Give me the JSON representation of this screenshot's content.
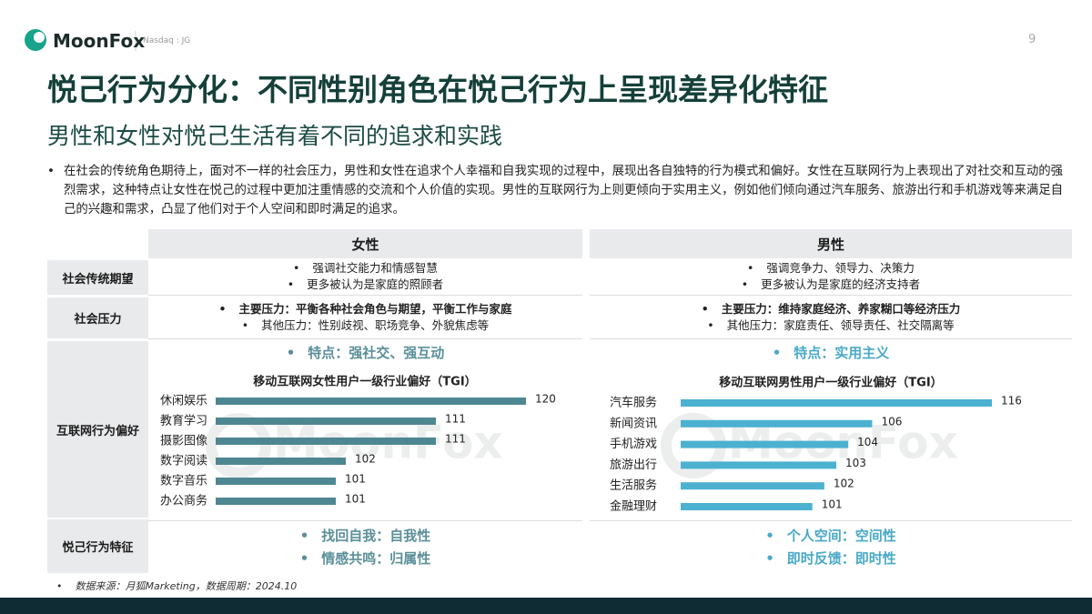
{
  "header": {
    "brand": "MoonFox",
    "exchange": "Nasdaq : JG",
    "page": "9"
  },
  "title": "悦己行为分化：不同性别角色在悦己行为上呈现差异化特征",
  "subtitle": "男性和女性对悦己生活有着不同的追求和实践",
  "intro": "在社会的传统角色期待上，面对不一样的社会压力，男性和女性在追求个人幸福和自我实现的过程中，展现出各自独特的行为模式和偏好。女性在互联网行为上表现出了对社交和互动的强烈需求，这种特点让女性在悦己的过程中更加注重情感的交流和个人价值的实现。男性的互联网行为上则更倾向于实用主义，例如他们倾向通过汽车服务、旅游出行和手机游戏等来满足自己的兴趣和需求，凸显了他们对于个人空间和即时满足的追求。",
  "table": {
    "columns": [
      "女性",
      "男性"
    ],
    "rows": [
      {
        "label": "社会传统期望",
        "female": [
          "强调社交能力和情感智慧",
          "更多被认为是家庭的照顾者"
        ],
        "male": [
          "强调竞争力、领导力、决策力",
          "更多被认为是家庭的经济支持者"
        ]
      },
      {
        "label": "社会压力",
        "female": [
          "主要压力：平衡各种社会角色与期望，平衡工作与家庭",
          "其他压力：性别歧视、职场竞争、外貌焦虑等"
        ],
        "male": [
          "主要压力：维持家庭经济、养家糊口等经济压力",
          "其他压力：家庭责任、领导责任、社交隔离等"
        ]
      },
      {
        "label": "互联网行为偏好",
        "female": [
          "特点：强社交、强互动"
        ],
        "male": [
          "特点：实用主义"
        ]
      },
      {
        "label": "悦己行为特征",
        "female": [
          "找回自我：自我性",
          "情感共鸣：归属性"
        ],
        "male": [
          "个人空间：空间性",
          "即时反馈：即时性"
        ]
      }
    ]
  },
  "chart_data": [
    {
      "type": "bar",
      "orientation": "horizontal",
      "title": "移动互联网女性用户一级行业偏好（TGI）",
      "categories": [
        "休闲娱乐",
        "教育学习",
        "摄影图像",
        "数字阅读",
        "数字音乐",
        "办公商务"
      ],
      "values": [
        120,
        111,
        111,
        102,
        101,
        101
      ],
      "color": "#4e8791",
      "xlim": [
        89,
        120
      ]
    },
    {
      "type": "bar",
      "orientation": "horizontal",
      "title": "移动互联网男性用户一级行业偏好（TGI）",
      "categories": [
        "汽车服务",
        "新闻资讯",
        "手机游戏",
        "旅游出行",
        "生活服务",
        "金融理财"
      ],
      "values": [
        116,
        106,
        104,
        103,
        102,
        101
      ],
      "color": "#4cb1d0",
      "xlim": [
        90,
        116
      ]
    }
  ],
  "watermark": "MoonFox",
  "source": "数据来源：月狐Marketing，数据周期：2024.10"
}
